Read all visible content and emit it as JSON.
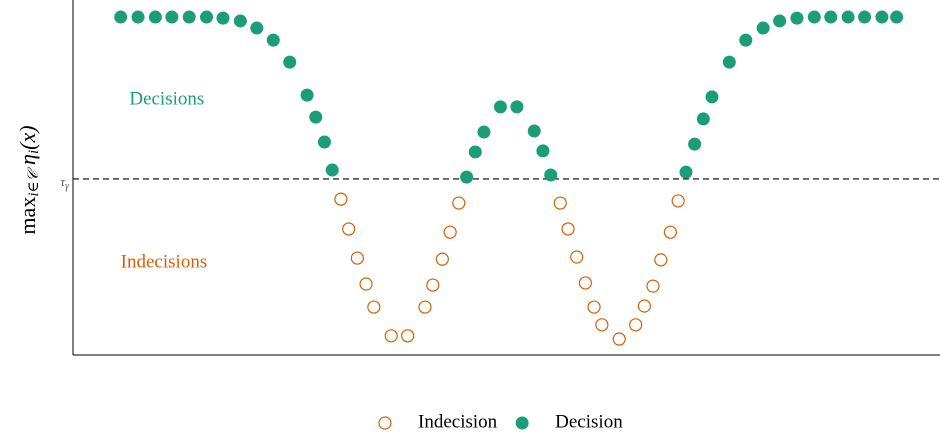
{
  "chart_data": {
    "type": "scatter",
    "ylabel_parts": [
      "max",
      "i∈𝒞",
      " η",
      "i",
      "(x)"
    ],
    "hline": 49.6,
    "hline_label_parts": [
      "τ",
      "γ"
    ],
    "annotations": [
      {
        "text": "Decisions",
        "x": 6.5,
        "y": 71.8,
        "color": "#1b9e77"
      },
      {
        "text": "Indecisions",
        "x": 5.5,
        "y": 25.9,
        "color": "#d95f02"
      }
    ],
    "xlim": [
      0,
      100
    ],
    "ylim": [
      0,
      100
    ],
    "legend": "bottom",
    "series": [
      {
        "name": "Indecision",
        "color": "#d95f02",
        "marker": "open",
        "x": [
          30.9,
          31.8,
          32.8,
          33.8,
          34.7,
          36.7,
          38.6,
          40.6,
          41.5,
          42.6,
          43.5,
          44.5,
          56.2,
          57.1,
          58.1,
          59.1,
          60.1,
          61.0,
          63.0,
          64.9,
          65.9,
          66.9,
          67.8,
          68.9,
          69.8
        ],
        "values": [
          43.9,
          35.5,
          27.3,
          20.0,
          13.5,
          5.4,
          5.4,
          13.5,
          19.7,
          27.0,
          34.6,
          42.8,
          42.8,
          35.5,
          27.6,
          20.3,
          13.5,
          8.5,
          4.5,
          8.5,
          13.8,
          19.4,
          26.8,
          34.6,
          43.4
        ]
      },
      {
        "name": "Decision",
        "color": "#1b9e77",
        "marker": "filled",
        "x": [
          5.5,
          7.5,
          9.5,
          11.4,
          13.4,
          15.4,
          17.3,
          19.3,
          21.2,
          23.1,
          25.0,
          27.0,
          28.0,
          29.0,
          29.9,
          45.4,
          46.4,
          47.4,
          49.3,
          51.2,
          53.2,
          54.2,
          55.1,
          70.7,
          71.7,
          72.7,
          73.7,
          75.7,
          77.6,
          79.6,
          81.5,
          83.5,
          85.5,
          87.4,
          89.4,
          91.3,
          93.3,
          95.0
        ],
        "values": [
          95.2,
          95.2,
          95.2,
          95.2,
          95.2,
          95.2,
          94.9,
          94.1,
          92.1,
          88.7,
          82.5,
          73.2,
          67.0,
          60.0,
          52.1,
          50.1,
          57.2,
          62.8,
          69.9,
          69.9,
          63.1,
          57.5,
          50.7,
          51.5,
          59.4,
          66.5,
          72.7,
          82.5,
          88.7,
          92.1,
          94.1,
          94.9,
          95.2,
          95.2,
          95.2,
          95.2,
          95.2,
          95.2
        ]
      }
    ]
  }
}
